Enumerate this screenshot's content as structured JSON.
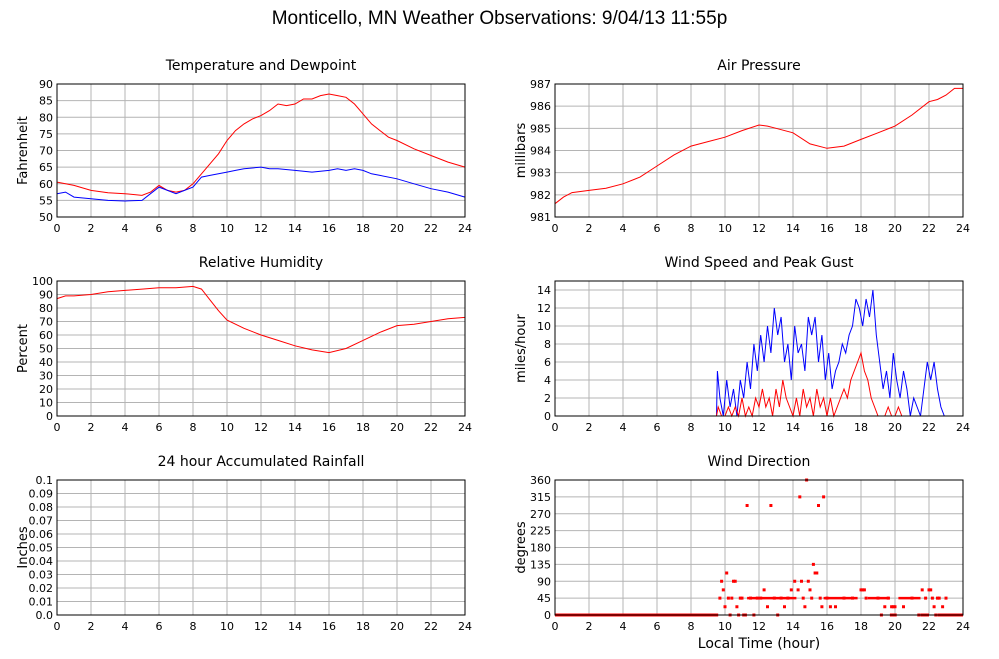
{
  "page": {
    "title": "Monticello, MN Weather Observations: 9/04/13 11:55p"
  },
  "colors": {
    "red": "#ff0000",
    "blue": "#0000ff",
    "grid": "#b4b4b4",
    "frame": "#000000"
  },
  "chart_data": [
    {
      "type": "line",
      "title": "Temperature and Dewpoint",
      "ylabel": "Fahrenheit",
      "xlabel": "",
      "xlim": [
        0,
        24
      ],
      "ylim": [
        50,
        90
      ],
      "xticks": [
        0,
        2,
        4,
        6,
        8,
        10,
        12,
        14,
        16,
        18,
        20,
        22,
        24
      ],
      "yticks": [
        50,
        55,
        60,
        65,
        70,
        75,
        80,
        85,
        90
      ],
      "grid": true,
      "series": [
        {
          "color": "red",
          "x": [
            0,
            1,
            2,
            3,
            4,
            5,
            5.5,
            6,
            6.5,
            7,
            7.5,
            8,
            8.5,
            9,
            9.5,
            10,
            10.5,
            11,
            11.5,
            12,
            12.5,
            13,
            13.5,
            14,
            14.5,
            15,
            15.5,
            16,
            16.5,
            17,
            17.5,
            18,
            18.5,
            19,
            19.5,
            20,
            21,
            22,
            23,
            24
          ],
          "y": [
            60.5,
            59.5,
            58,
            57.3,
            57,
            56.5,
            57.5,
            59.5,
            58,
            57.5,
            58,
            60,
            63,
            66,
            69,
            73,
            76,
            78,
            79.5,
            80.5,
            82,
            84,
            83.5,
            84,
            85.5,
            85.5,
            86.5,
            87,
            86.5,
            86,
            84,
            81,
            78,
            76,
            74,
            73,
            70.5,
            68.5,
            66.5,
            65
          ]
        },
        {
          "color": "blue",
          "x": [
            0,
            0.5,
            1,
            2,
            3,
            4,
            5,
            5.5,
            6,
            6.5,
            7,
            7.5,
            8,
            8.5,
            9,
            9.5,
            10,
            10.5,
            11,
            12,
            12.5,
            13,
            14,
            15,
            16,
            16.5,
            17,
            17.5,
            18,
            18.5,
            19,
            20,
            21,
            22,
            23,
            24
          ],
          "y": [
            57,
            57.5,
            56,
            55.5,
            55,
            54.8,
            55,
            57,
            59,
            58,
            57,
            58,
            59,
            62,
            62.5,
            63,
            63.5,
            64,
            64.5,
            65,
            64.5,
            64.5,
            64,
            63.5,
            64,
            64.5,
            64,
            64.5,
            64,
            63,
            62.5,
            61.5,
            60,
            58.5,
            57.5,
            56
          ]
        }
      ]
    },
    {
      "type": "line",
      "title": "Air Pressure",
      "ylabel": "millibars",
      "xlabel": "",
      "xlim": [
        0,
        24
      ],
      "ylim": [
        981,
        987
      ],
      "xticks": [
        0,
        2,
        4,
        6,
        8,
        10,
        12,
        14,
        16,
        18,
        20,
        22,
        24
      ],
      "yticks": [
        981,
        982,
        983,
        984,
        985,
        986,
        987
      ],
      "grid": true,
      "series": [
        {
          "color": "red",
          "x": [
            0,
            0.5,
            1,
            2,
            3,
            4,
            5,
            6,
            7,
            8,
            9,
            10,
            11,
            12,
            12.5,
            13,
            14,
            15,
            16,
            17,
            18,
            19,
            20,
            21,
            22,
            22.5,
            23,
            23.5,
            24
          ],
          "y": [
            981.6,
            981.9,
            982.1,
            982.2,
            982.3,
            982.5,
            982.8,
            983.3,
            983.8,
            984.2,
            984.4,
            984.6,
            984.9,
            985.15,
            985.1,
            985.0,
            984.8,
            984.3,
            984.1,
            984.2,
            984.5,
            984.8,
            985.1,
            985.6,
            986.2,
            986.3,
            986.5,
            986.8,
            986.8
          ]
        }
      ]
    },
    {
      "type": "line",
      "title": "Relative Humidity",
      "ylabel": "Percent",
      "xlabel": "",
      "xlim": [
        0,
        24
      ],
      "ylim": [
        0,
        100
      ],
      "xticks": [
        0,
        2,
        4,
        6,
        8,
        10,
        12,
        14,
        16,
        18,
        20,
        22,
        24
      ],
      "yticks": [
        0,
        10,
        20,
        30,
        40,
        50,
        60,
        70,
        80,
        90,
        100
      ],
      "grid": true,
      "series": [
        {
          "color": "red",
          "x": [
            0,
            0.5,
            1,
            2,
            3,
            4,
            5,
            6,
            7,
            8,
            8.5,
            9,
            9.5,
            10,
            11,
            12,
            13,
            14,
            15,
            16,
            17,
            18,
            19,
            20,
            21,
            22,
            23,
            24
          ],
          "y": [
            87,
            89,
            89,
            90,
            92,
            93,
            94,
            95,
            95,
            96,
            94,
            86,
            78,
            71,
            65,
            60,
            56,
            52,
            49,
            47,
            50,
            56,
            62,
            67,
            68,
            70,
            72,
            73
          ]
        }
      ]
    },
    {
      "type": "line",
      "title": "Wind Speed and Peak Gust",
      "ylabel": "miles/hour",
      "xlabel": "",
      "xlim": [
        0,
        24
      ],
      "ylim": [
        0,
        15
      ],
      "xticks": [
        0,
        2,
        4,
        6,
        8,
        10,
        12,
        14,
        16,
        18,
        20,
        22,
        24
      ],
      "yticks": [
        0,
        2,
        4,
        6,
        8,
        10,
        12,
        14
      ],
      "grid": true,
      "series": [
        {
          "color": "blue",
          "x": [
            0,
            9.5,
            9.55,
            9.7,
            9.9,
            10.1,
            10.3,
            10.5,
            10.7,
            10.9,
            11.1,
            11.3,
            11.5,
            11.7,
            11.9,
            12.1,
            12.3,
            12.5,
            12.7,
            12.9,
            13.1,
            13.3,
            13.5,
            13.7,
            13.9,
            14.1,
            14.3,
            14.5,
            14.7,
            14.9,
            15.1,
            15.3,
            15.5,
            15.7,
            15.9,
            16.1,
            16.3,
            16.5,
            16.7,
            16.9,
            17.1,
            17.3,
            17.5,
            17.7,
            17.9,
            18.1,
            18.3,
            18.5,
            18.7,
            18.9,
            19.1,
            19.3,
            19.5,
            19.7,
            19.9,
            20.1,
            20.3,
            20.5,
            20.7,
            20.9,
            21.1,
            21.3,
            21.5,
            21.7,
            21.9,
            22.1,
            22.3,
            22.5,
            22.7,
            22.9,
            23.1,
            24
          ],
          "y": [
            0,
            0,
            5,
            2,
            0,
            4,
            1,
            3,
            0,
            4,
            2,
            6,
            3,
            8,
            5,
            9,
            6,
            10,
            7,
            12,
            9,
            11,
            6,
            8,
            4,
            10,
            7,
            8,
            5,
            11,
            9,
            11,
            6,
            9,
            4,
            7,
            3,
            5,
            6,
            8,
            7,
            9,
            10,
            13,
            12,
            10,
            13,
            11,
            14,
            9,
            6,
            3,
            5,
            2,
            7,
            4,
            2,
            5,
            3,
            0,
            2,
            1,
            0,
            3,
            6,
            4,
            6,
            3,
            1,
            0,
            0,
            0
          ]
        },
        {
          "color": "red",
          "x": [
            0,
            9.5,
            9.6,
            9.8,
            10.0,
            10.2,
            10.4,
            10.6,
            10.8,
            11.0,
            11.2,
            11.4,
            11.6,
            11.8,
            12.0,
            12.2,
            12.4,
            12.6,
            12.8,
            13.0,
            13.2,
            13.4,
            13.6,
            13.8,
            14.0,
            14.2,
            14.4,
            14.6,
            14.8,
            15.0,
            15.2,
            15.4,
            15.6,
            15.8,
            16.0,
            16.2,
            16.4,
            16.6,
            16.8,
            17.0,
            17.2,
            17.4,
            17.6,
            17.8,
            18.0,
            18.2,
            18.4,
            18.6,
            18.8,
            19.0,
            19.2,
            19.4,
            19.6,
            19.8,
            20.0,
            20.2,
            20.4,
            20.6,
            20.8,
            21.0,
            24
          ],
          "y": [
            0,
            0,
            1,
            0,
            0,
            1,
            0,
            1,
            0,
            2,
            0,
            1,
            0,
            2,
            1,
            3,
            1,
            2,
            0,
            3,
            1,
            4,
            2,
            1,
            0,
            2,
            0,
            3,
            1,
            2,
            0,
            3,
            1,
            2,
            0,
            2,
            0,
            1,
            2,
            3,
            2,
            4,
            5,
            6,
            7,
            5,
            4,
            2,
            1,
            0,
            0,
            0,
            1,
            0,
            0,
            1,
            0,
            0,
            0,
            0,
            0
          ]
        }
      ]
    },
    {
      "type": "line",
      "title": "24 hour Accumulated Rainfall",
      "ylabel": "Inches",
      "xlabel": "",
      "xlim": [
        0,
        24
      ],
      "ylim": [
        0,
        0.1
      ],
      "xticks": [
        0,
        2,
        4,
        6,
        8,
        10,
        12,
        14,
        16,
        18,
        20,
        22,
        24
      ],
      "yticks": [
        0.0,
        0.01,
        0.02,
        0.03,
        0.04,
        0.05,
        0.06,
        0.07,
        0.08,
        0.09,
        0.1
      ],
      "ytick_labels": [
        "0.0",
        "0.01",
        "0.02",
        "0.03",
        "0.04",
        "0.05",
        "0.06",
        "0.07",
        "0.08",
        "0.09",
        "0.1"
      ],
      "grid": true,
      "series": [
        {
          "color": "red",
          "x": [
            0,
            24
          ],
          "y": [
            0,
            0
          ]
        }
      ]
    },
    {
      "type": "scatter",
      "title": "Wind Direction",
      "ylabel": "degrees",
      "xlabel": "Local Time (hour)",
      "xlim": [
        0,
        24
      ],
      "ylim": [
        0,
        360
      ],
      "xticks": [
        0,
        2,
        4,
        6,
        8,
        10,
        12,
        14,
        16,
        18,
        20,
        22,
        24
      ],
      "yticks": [
        0,
        45,
        90,
        135,
        180,
        225,
        270,
        315,
        360
      ],
      "grid": true,
      "baseline_segments": [
        [
          0,
          9.6
        ],
        [
          19.7,
          20.1
        ],
        [
          21.5,
          22.0
        ],
        [
          22.5,
          24
        ]
      ],
      "band_segments": [
        [
          11.3,
          14.2
        ],
        [
          15.8,
          17.8
        ],
        [
          18.4,
          19.7
        ],
        [
          20.2,
          21.5
        ]
      ],
      "band_value": 45,
      "series": [
        {
          "color": "red",
          "x": [
            9.7,
            9.8,
            9.9,
            10.0,
            10.1,
            10.2,
            10.3,
            10.4,
            10.5,
            10.6,
            10.7,
            10.8,
            10.9,
            11.0,
            11.1,
            11.2,
            11.3,
            11.5,
            11.7,
            11.9,
            12.1,
            12.3,
            12.5,
            12.7,
            12.9,
            13.1,
            13.3,
            13.5,
            13.7,
            13.9,
            14.1,
            14.3,
            14.4,
            14.5,
            14.6,
            14.7,
            14.8,
            14.9,
            15.0,
            15.1,
            15.2,
            15.3,
            15.4,
            15.5,
            15.6,
            15.7,
            15.8,
            16.0,
            16.2,
            16.5,
            17.0,
            17.5,
            18.0,
            18.1,
            18.2,
            18.3,
            19.0,
            19.2,
            19.4,
            19.6,
            19.8,
            19.9,
            20.0,
            20.5,
            21.0,
            21.4,
            21.6,
            21.8,
            22.0,
            22.1,
            22.2,
            22.3,
            22.4,
            22.5,
            22.6,
            22.8,
            23.0
          ],
          "y": [
            45,
            90,
            67,
            22,
            112,
            45,
            0,
            45,
            90,
            90,
            22,
            0,
            45,
            45,
            0,
            0,
            292,
            45,
            0,
            45,
            45,
            67,
            22,
            292,
            45,
            0,
            45,
            22,
            45,
            67,
            90,
            67,
            315,
            90,
            45,
            22,
            360,
            90,
            67,
            45,
            135,
            112,
            112,
            292,
            45,
            22,
            315,
            45,
            22,
            22,
            45,
            45,
            67,
            67,
            67,
            45,
            45,
            0,
            22,
            45,
            22,
            22,
            22,
            22,
            45,
            0,
            67,
            45,
            67,
            67,
            45,
            22,
            0,
            45,
            45,
            22,
            45
          ]
        }
      ]
    }
  ]
}
